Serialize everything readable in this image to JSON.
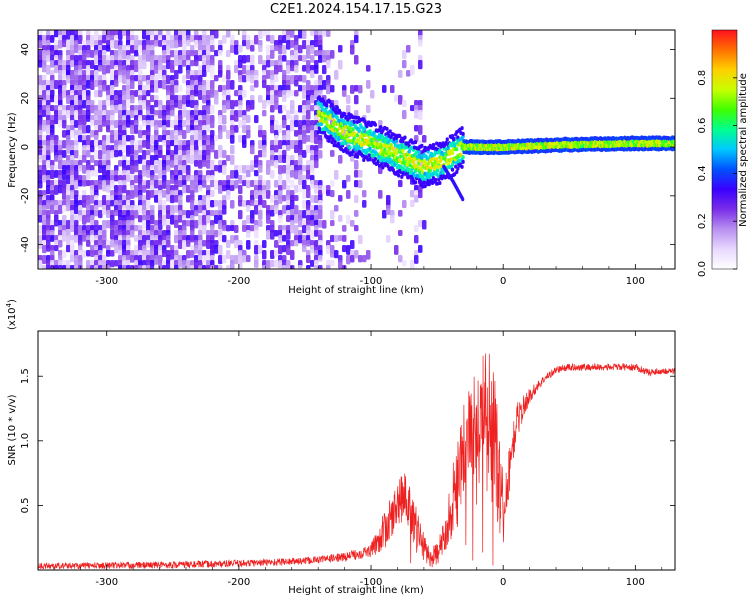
{
  "title": "C2E1.2024.154.17.15.G23",
  "chart_data": [
    {
      "type": "heatmap",
      "xlabel": "Height of straight line (km)",
      "ylabel": "Frequency (Hz)",
      "xlim": [
        -352,
        130
      ],
      "ylim": [
        -50,
        48
      ],
      "x_ticks": [
        -300,
        -200,
        -100,
        0,
        100
      ],
      "y_ticks": [
        -40,
        -20,
        0,
        20,
        40
      ],
      "colorbar": {
        "label": "Normalized spectral amplitude",
        "ticks": [
          "0.0",
          "0.2",
          "0.4",
          "0.6",
          "0.8"
        ],
        "range": [
          0,
          1
        ],
        "colormap": [
          "#ffffff",
          "#e8d8ff",
          "#b890f0",
          "#7a2ee8",
          "#3a00ff",
          "#0050ff",
          "#00c8ff",
          "#00ff90",
          "#40ff00",
          "#c8ff00",
          "#ffd000",
          "#ff7000",
          "#ff1020"
        ]
      },
      "features": [
        {
          "name": "broadband noise",
          "x_range": [
            -352,
            -140
          ],
          "freq_range": [
            -50,
            48
          ],
          "level": 0.18
        },
        {
          "name": "ridge",
          "points": [
            [
              -140,
              14
            ],
            [
              -120,
              6
            ],
            [
              -100,
              2
            ],
            [
              -80,
              -3
            ],
            [
              -60,
              -8
            ],
            [
              -45,
              -6
            ],
            [
              -30,
              0
            ],
            [
              0,
              0
            ],
            [
              50,
              1
            ],
            [
              100,
              1.5
            ],
            [
              128,
              1.5
            ]
          ],
          "level_range": [
            0.3,
            0.95
          ]
        },
        {
          "name": "branch",
          "points": [
            [
              -45,
              -8
            ],
            [
              -38,
              -14
            ],
            [
              -30,
              -22
            ]
          ],
          "level": 0.35
        }
      ]
    },
    {
      "type": "line",
      "xlabel": "Height of straight line (km)",
      "ylabel": "SNR (10 * v/v)",
      "scale_label": "(x10",
      "scale_exp": "4",
      "scale_close": ")",
      "xlim": [
        -352,
        130
      ],
      "ylim": [
        0,
        18500
      ],
      "x_ticks": [
        -300,
        -200,
        -100,
        0,
        100
      ],
      "y_ticks": [
        5000,
        10000,
        15000
      ],
      "y_tick_labels": [
        "0.5",
        "1.0",
        "1.5"
      ],
      "line_color": "#ee2020",
      "envelope": {
        "x": [
          -352,
          -300,
          -250,
          -200,
          -150,
          -120,
          -100,
          -90,
          -80,
          -75,
          -70,
          -65,
          -60,
          -55,
          -50,
          -45,
          -40,
          -35,
          -30,
          -25,
          -20,
          -15,
          -10,
          -5,
          0,
          5,
          10,
          20,
          30,
          40,
          50,
          60,
          80,
          100,
          110,
          120,
          130
        ],
        "y": [
          300,
          350,
          400,
          500,
          700,
          1000,
          1500,
          3000,
          5000,
          6000,
          4500,
          3000,
          1800,
          900,
          1200,
          2500,
          4500,
          7000,
          9500,
          11000,
          12000,
          12500,
          12000,
          9000,
          4000,
          8000,
          11500,
          13500,
          14700,
          15500,
          15700,
          15700,
          15700,
          15700,
          15300,
          15400,
          15400
        ]
      },
      "jitter_amp": {
        "x": [
          -352,
          -130,
          -100,
          -90,
          -70,
          -55,
          -45,
          -35,
          -5,
          0,
          5,
          20,
          30,
          130
        ],
        "y": [
          250,
          300,
          500,
          1500,
          2000,
          700,
          1200,
          3500,
          5000,
          3000,
          1800,
          600,
          300,
          250
        ]
      }
    }
  ]
}
